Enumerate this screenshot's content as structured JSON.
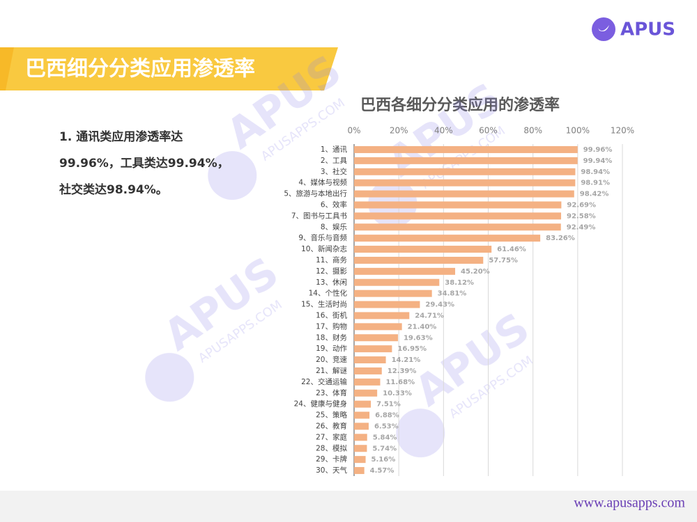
{
  "header": {
    "logo": "APUS",
    "title": "巴西细分分类应用渗透率"
  },
  "summary": [
    "1. 通讯类应用渗透率达",
    "99.96%，工具类达99.94%，",
    "社交类达98.94%。"
  ],
  "watermark": {
    "logo": "APUS",
    "site": "APUSAPPS.COM"
  },
  "chart_data": {
    "type": "bar",
    "orientation": "horizontal",
    "title": "巴西各细分分类应用的渗透率",
    "categories": [
      "1、通讯",
      "2、工具",
      "3、社交",
      "4、媒体与视频",
      "5、旅游与本地出行",
      "6、效率",
      "7、图书与工具书",
      "8、娱乐",
      "9、音乐与音频",
      "10、新闻杂志",
      "11、商务",
      "12、摄影",
      "13、休闲",
      "14、个性化",
      "15、生活时尚",
      "16、街机",
      "17、购物",
      "18、财务",
      "19、动作",
      "20、竞速",
      "21、解谜",
      "22、交通运输",
      "23、体育",
      "24、健康与健身",
      "25、策略",
      "26、教育",
      "27、家庭",
      "28、模拟",
      "29、卡牌",
      "30、天气"
    ],
    "values": [
      99.96,
      99.94,
      98.94,
      98.91,
      98.42,
      92.69,
      92.58,
      92.49,
      83.26,
      61.46,
      57.75,
      45.2,
      38.12,
      34.81,
      29.43,
      24.71,
      21.4,
      19.63,
      16.95,
      14.21,
      12.39,
      11.68,
      10.33,
      7.51,
      6.88,
      6.53,
      5.84,
      5.74,
      5.16,
      4.57
    ],
    "value_labels": [
      "99.96%",
      "99.94%",
      "98.94%",
      "98.91%",
      "98.42%",
      "92.69%",
      "92.58%",
      "92.49%",
      "83.26%",
      "61.46%",
      "57.75%",
      "45.20%",
      "38.12%",
      "34.81%",
      "29.43%",
      "24.71%",
      "21.40%",
      "19.63%",
      "16.95%",
      "14.21%",
      "12.39%",
      "11.68%",
      "10.33%",
      "7.51%",
      "6.88%",
      "6.53%",
      "5.84%",
      "5.74%",
      "5.16%",
      "4.57%"
    ],
    "color": "#f4b183",
    "xlim": [
      0,
      120
    ],
    "xticks": [
      {
        "value": 0,
        "label": "0%"
      },
      {
        "value": 20,
        "label": "20%"
      },
      {
        "value": 40,
        "label": "40%"
      },
      {
        "value": 60,
        "label": "60%"
      },
      {
        "value": 80,
        "label": "80%"
      },
      {
        "value": 100,
        "label": "100%"
      },
      {
        "value": 120,
        "label": "120%"
      }
    ],
    "grid": true
  },
  "footer": "www.apusapps.com"
}
